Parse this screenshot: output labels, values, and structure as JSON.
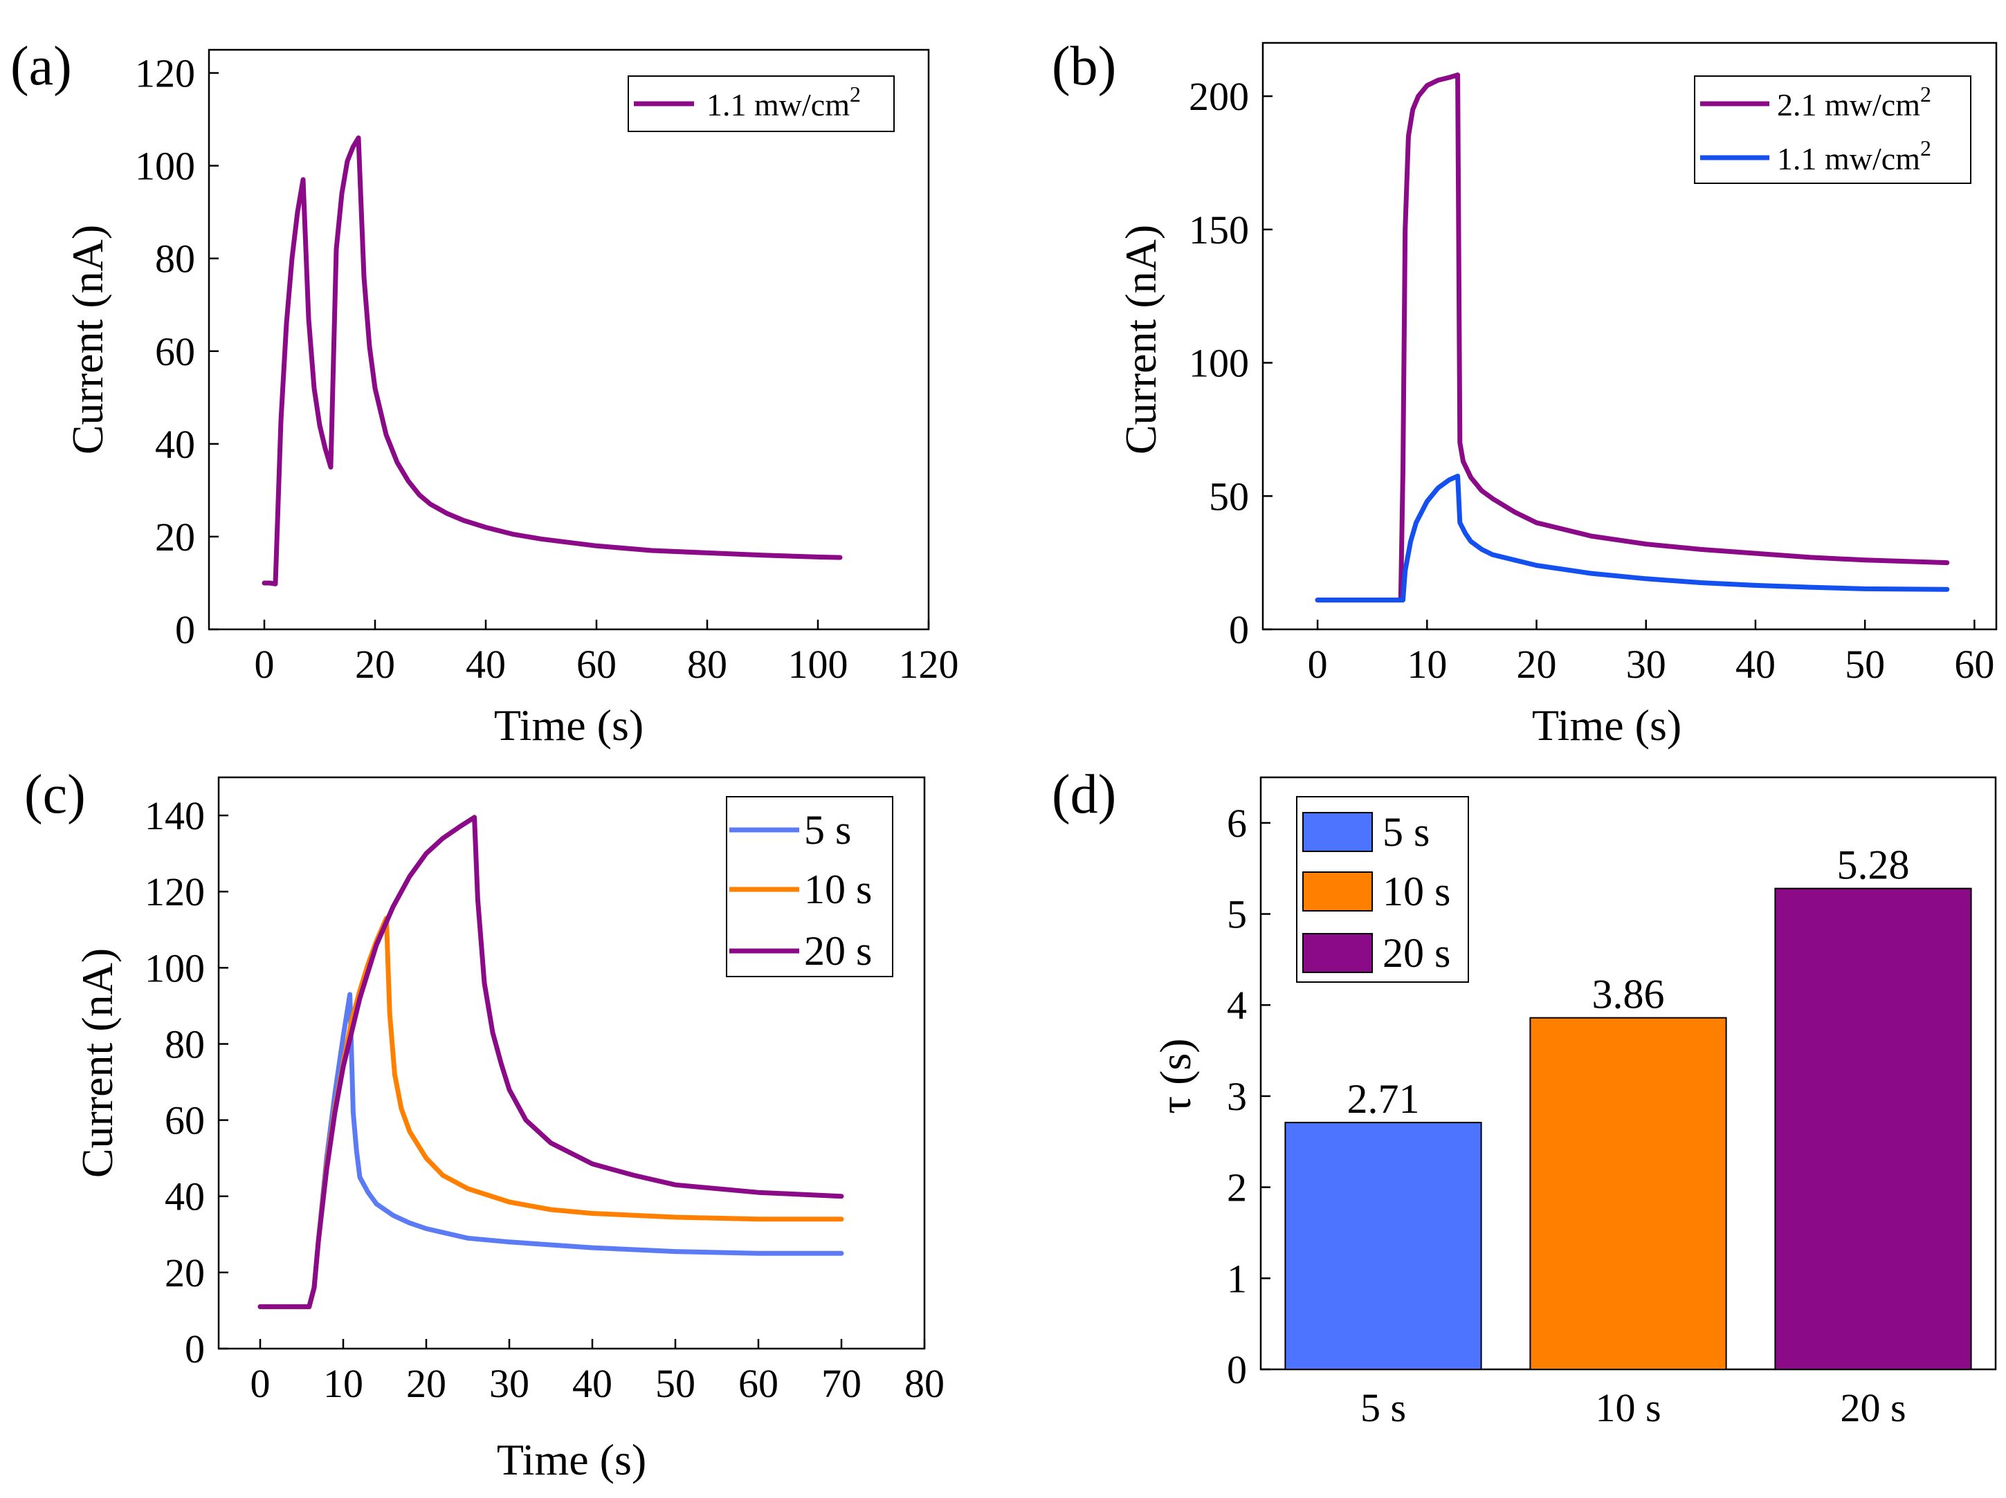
{
  "figure": {
    "panels": [
      "(a)",
      "(b)",
      "(c)",
      "(d)"
    ]
  },
  "chart_data": [
    {
      "id": "a",
      "type": "line",
      "panel_label": "(a)",
      "xlabel": "Time (s)",
      "ylabel": "Current (nA)",
      "xlim": [
        -10,
        120
      ],
      "ylim": [
        0,
        125
      ],
      "xticks": [
        0,
        20,
        40,
        60,
        80,
        100,
        120
      ],
      "yticks": [
        0,
        20,
        40,
        60,
        80,
        100,
        120
      ],
      "legend_position": "top-right",
      "series": [
        {
          "name": "1.1 mw/cm",
          "name_superscript": "2",
          "color": "#8B0A87",
          "x": [
            0,
            1,
            2,
            3,
            4,
            5,
            6,
            7,
            8,
            9,
            10,
            11,
            12,
            13,
            14,
            15,
            16,
            17,
            18,
            19,
            20,
            22,
            24,
            26,
            28,
            30,
            33,
            36,
            40,
            45,
            50,
            60,
            70,
            80,
            90,
            100,
            104
          ],
          "y": [
            10,
            10,
            9.8,
            45,
            66,
            80,
            90,
            97,
            67,
            52,
            44,
            39,
            35,
            82,
            94,
            101,
            104,
            106,
            76,
            61,
            52,
            42,
            36,
            32,
            29,
            27,
            25,
            23.5,
            22,
            20.5,
            19.5,
            18,
            17,
            16.5,
            16,
            15.6,
            15.5
          ]
        }
      ]
    },
    {
      "id": "b",
      "type": "line",
      "panel_label": "(b)",
      "xlabel": "Time (s)",
      "ylabel": "Current (nA)",
      "xlim": [
        -5,
        62
      ],
      "ylim": [
        0,
        220
      ],
      "xticks": [
        0,
        10,
        20,
        30,
        40,
        50,
        60
      ],
      "yticks": [
        0,
        50,
        100,
        150,
        200
      ],
      "legend_position": "top-right",
      "series": [
        {
          "name": "2.1 mw/cm",
          "name_superscript": "2",
          "color": "#8B0A87",
          "x": [
            0,
            5,
            7.6,
            7.8,
            8.0,
            8.3,
            8.7,
            9.2,
            10,
            11,
            12,
            12.8,
            13.0,
            13.3,
            14,
            15,
            16,
            18,
            20,
            25,
            30,
            35,
            40,
            45,
            50,
            57.5
          ],
          "y": [
            11,
            11,
            11,
            60,
            150,
            185,
            195,
            200,
            204,
            206,
            207,
            208,
            70,
            63,
            57,
            52,
            49,
            44,
            40,
            35,
            32,
            30,
            28.5,
            27,
            26,
            25
          ]
        },
        {
          "name": "1.1 mw/cm",
          "name_superscript": "2",
          "color": "#1450F0",
          "x": [
            0,
            5,
            7.8,
            8.0,
            8.5,
            9,
            10,
            11,
            12,
            12.8,
            13.0,
            13.5,
            14,
            15,
            16,
            18,
            20,
            25,
            30,
            35,
            40,
            45,
            50,
            57.5
          ],
          "y": [
            11,
            11,
            11,
            22,
            33,
            40,
            48,
            53,
            56,
            57.5,
            40,
            36,
            33,
            30,
            28,
            26,
            24,
            21,
            19,
            17.5,
            16.5,
            15.8,
            15.2,
            15
          ]
        }
      ]
    },
    {
      "id": "c",
      "type": "line",
      "panel_label": "(c)",
      "xlabel": "Time (s)",
      "ylabel": "Current (nA)",
      "xlim": [
        -5,
        80
      ],
      "ylim": [
        0,
        150
      ],
      "xticks": [
        0,
        10,
        20,
        30,
        40,
        50,
        60,
        70,
        80
      ],
      "yticks": [
        0,
        20,
        40,
        60,
        80,
        100,
        120,
        140
      ],
      "legend_position": "top-right",
      "series": [
        {
          "name": "5 s",
          "color": "#5B7BF5",
          "x": [
            0,
            5.9,
            6.5,
            7,
            8,
            9,
            10,
            10.8,
            11.2,
            11.6,
            12,
            13,
            14,
            16,
            18,
            20,
            25,
            30,
            40,
            50,
            60,
            70
          ],
          "y": [
            11,
            11,
            16,
            28,
            50,
            67,
            82,
            93,
            62,
            52,
            45,
            41,
            38,
            35,
            33,
            31.5,
            29,
            28,
            26.5,
            25.5,
            25,
            25
          ]
        },
        {
          "name": "10 s",
          "color": "#FF8000",
          "x": [
            0,
            5.9,
            6.5,
            7,
            8,
            9,
            10,
            11,
            12,
            13,
            14,
            15.2,
            15.6,
            16.2,
            17,
            18,
            20,
            22,
            25,
            30,
            35,
            40,
            50,
            60,
            70
          ],
          "y": [
            11,
            11,
            16,
            28,
            48,
            63,
            75,
            86,
            94,
            101,
            107,
            113,
            88,
            72,
            63,
            57,
            50,
            45.5,
            42,
            38.5,
            36.5,
            35.5,
            34.5,
            34,
            34
          ]
        },
        {
          "name": "20 s",
          "color": "#8B0A87",
          "x": [
            0,
            5.9,
            6.5,
            7,
            8,
            9,
            10,
            12,
            14,
            16,
            18,
            20,
            22,
            24,
            25.8,
            26.2,
            27,
            28,
            29,
            30,
            32,
            35,
            40,
            45,
            50,
            60,
            70
          ],
          "y": [
            11,
            11,
            16,
            28,
            47,
            62,
            74,
            92,
            106,
            116,
            124,
            130,
            134,
            137,
            139.5,
            118,
            96,
            83,
            75,
            68,
            60,
            54,
            48.5,
            45.5,
            43,
            41,
            40
          ]
        }
      ]
    },
    {
      "id": "d",
      "type": "bar",
      "panel_label": "(d)",
      "xlabel": "",
      "ylabel": "τ (s)",
      "ylim": [
        0,
        6.5
      ],
      "yticks": [
        0,
        1,
        2,
        3,
        4,
        5,
        6
      ],
      "categories": [
        "5 s",
        "10 s",
        "20 s"
      ],
      "values": [
        2.71,
        3.86,
        5.28
      ],
      "value_labels": [
        "2.71",
        "3.86",
        "5.28"
      ],
      "colors": [
        "#4D74FF",
        "#FF8000",
        "#8B0A87"
      ],
      "legend_position": "top-left",
      "legend": [
        "5 s",
        "10 s",
        "20 s"
      ]
    }
  ]
}
